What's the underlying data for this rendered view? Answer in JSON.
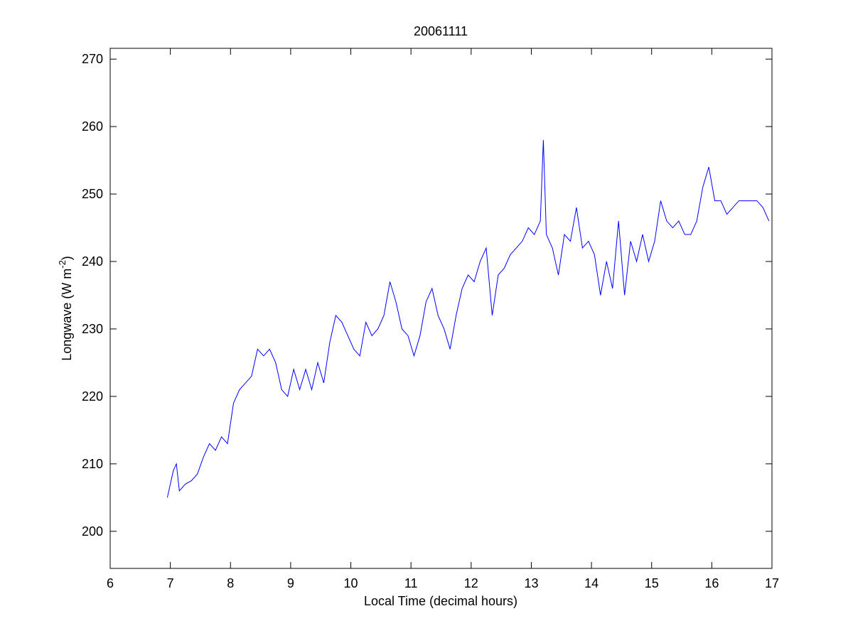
{
  "chart_data": {
    "type": "line",
    "title": "20061111",
    "xlabel": "Local Time (decimal hours)",
    "ylabel": {
      "text": "Longwave (W m",
      "sup": "-2",
      "end": ")"
    },
    "x": [
      6.95,
      7.05,
      7.1,
      7.15,
      7.25,
      7.35,
      7.45,
      7.55,
      7.65,
      7.75,
      7.85,
      7.95,
      8.05,
      8.15,
      8.25,
      8.35,
      8.45,
      8.55,
      8.65,
      8.75,
      8.85,
      8.95,
      9.05,
      9.15,
      9.25,
      9.35,
      9.45,
      9.55,
      9.65,
      9.75,
      9.85,
      9.95,
      10.05,
      10.15,
      10.25,
      10.35,
      10.45,
      10.55,
      10.65,
      10.75,
      10.85,
      10.95,
      11.05,
      11.15,
      11.25,
      11.35,
      11.45,
      11.55,
      11.65,
      11.75,
      11.85,
      11.95,
      12.05,
      12.15,
      12.25,
      12.35,
      12.45,
      12.55,
      12.65,
      12.75,
      12.85,
      12.95,
      13.05,
      13.15,
      13.2,
      13.25,
      13.35,
      13.45,
      13.55,
      13.65,
      13.75,
      13.85,
      13.95,
      14.05,
      14.15,
      14.25,
      14.35,
      14.45,
      14.55,
      14.65,
      14.75,
      14.85,
      14.95,
      15.05,
      15.15,
      15.25,
      15.35,
      15.45,
      15.55,
      15.65,
      15.75,
      15.85,
      15.95,
      16.05,
      16.15,
      16.25,
      16.35,
      16.45,
      16.55,
      16.65,
      16.75,
      16.85,
      16.95
    ],
    "series": [
      {
        "name": "Longwave",
        "color": "#0000ff",
        "values": [
          205,
          209,
          210,
          206,
          207,
          207.5,
          208.5,
          211,
          213,
          212,
          214,
          213,
          219,
          221,
          222,
          223,
          227,
          226,
          227,
          225,
          221,
          220,
          224,
          221,
          224,
          221,
          225,
          222,
          228,
          232,
          231,
          229,
          227,
          226,
          231,
          229,
          230,
          232,
          237,
          234,
          230,
          229,
          226,
          229,
          234,
          236,
          232,
          230,
          227,
          232,
          236,
          238,
          237,
          240,
          242,
          232,
          238,
          239,
          241,
          242,
          243,
          245,
          244,
          246,
          258,
          244,
          242,
          238,
          244,
          243,
          248,
          242,
          243,
          241,
          235,
          240,
          236,
          246,
          235,
          243,
          240,
          244,
          240,
          243,
          249,
          246,
          245,
          246,
          244,
          244,
          246,
          251,
          254,
          249,
          249,
          247,
          248,
          249,
          249,
          249,
          249,
          248,
          246
        ]
      }
    ],
    "xlim": [
      6,
      17
    ],
    "xticks": [
      6,
      7,
      8,
      9,
      10,
      11,
      12,
      13,
      14,
      15,
      16,
      17
    ],
    "ylim": [
      194.5,
      271.6
    ],
    "yticks": [
      200,
      210,
      220,
      230,
      240,
      250,
      260,
      270
    ]
  }
}
